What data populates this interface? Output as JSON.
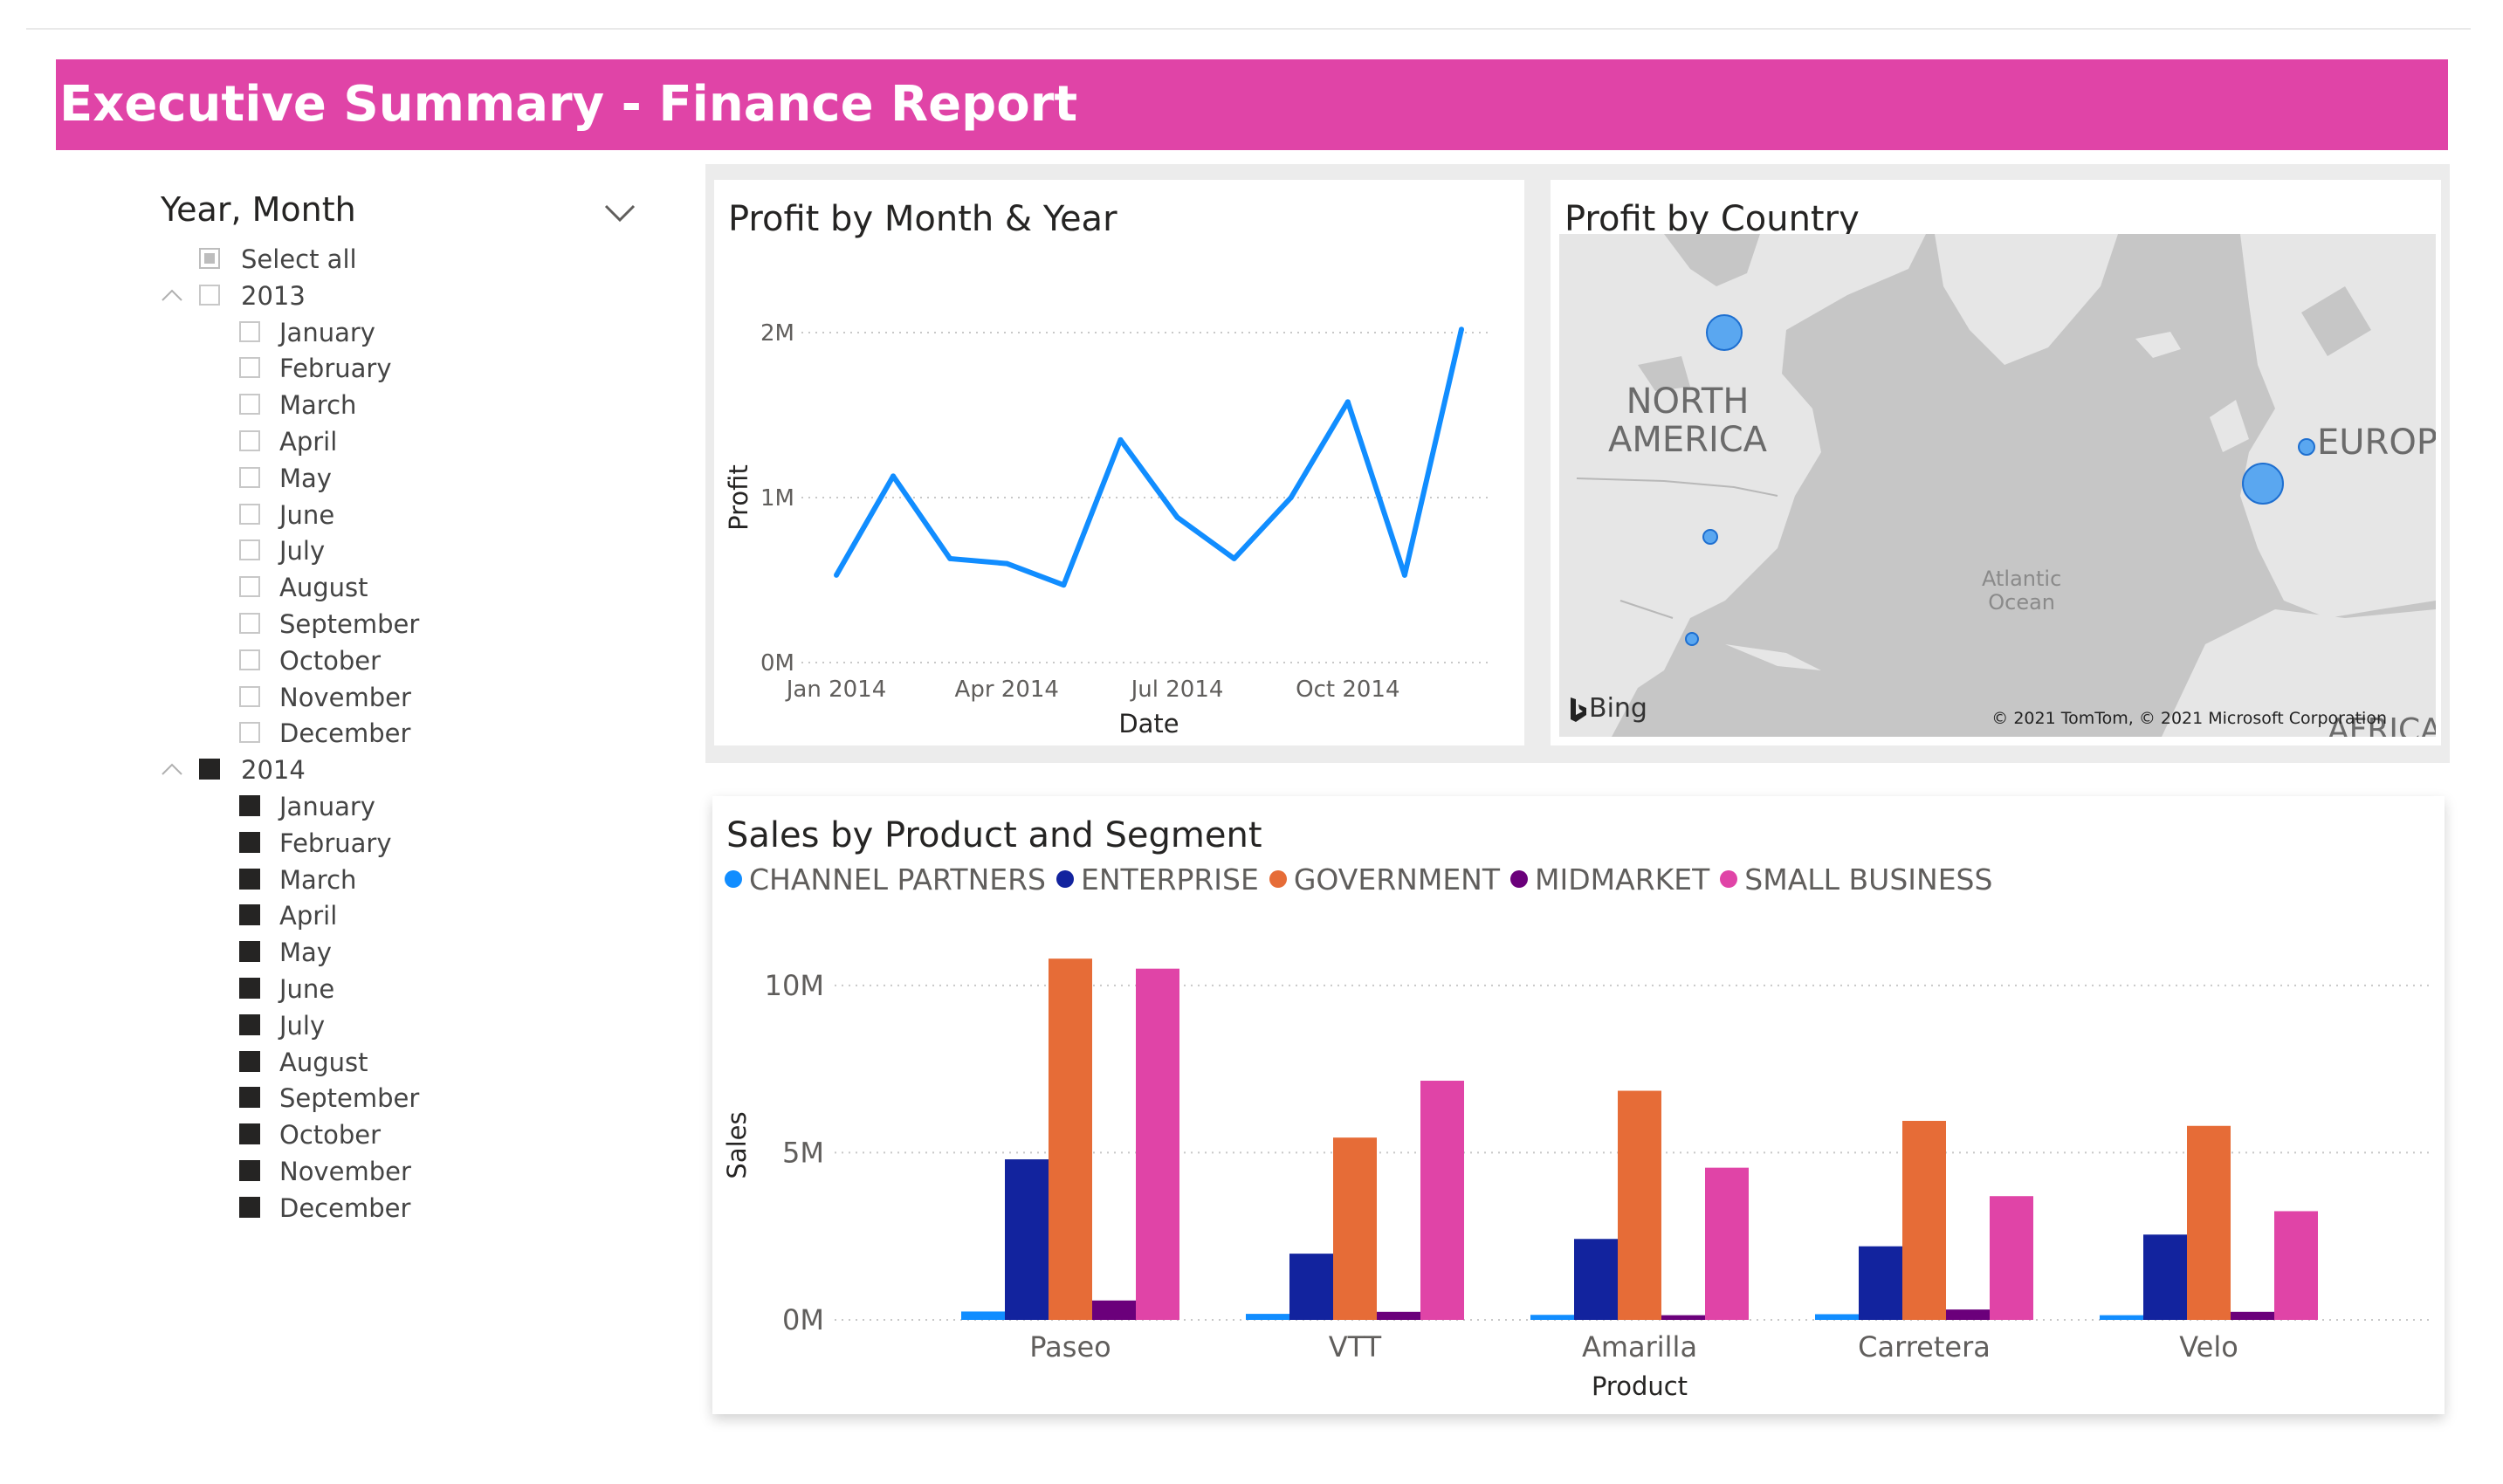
{
  "report": {
    "title": "Executive Summary - Finance Report"
  },
  "slicer": {
    "title": "Year, Month",
    "items": [
      {
        "label": "Select all",
        "level": 0,
        "state": "partial",
        "expander": false
      },
      {
        "label": "2013",
        "level": 0,
        "state": "unchecked",
        "expander": true
      },
      {
        "label": "January",
        "level": 1,
        "state": "unchecked"
      },
      {
        "label": "February",
        "level": 1,
        "state": "unchecked"
      },
      {
        "label": "March",
        "level": 1,
        "state": "unchecked"
      },
      {
        "label": "April",
        "level": 1,
        "state": "unchecked"
      },
      {
        "label": "May",
        "level": 1,
        "state": "unchecked"
      },
      {
        "label": "June",
        "level": 1,
        "state": "unchecked"
      },
      {
        "label": "July",
        "level": 1,
        "state": "unchecked"
      },
      {
        "label": "August",
        "level": 1,
        "state": "unchecked"
      },
      {
        "label": "September",
        "level": 1,
        "state": "unchecked"
      },
      {
        "label": "October",
        "level": 1,
        "state": "unchecked"
      },
      {
        "label": "November",
        "level": 1,
        "state": "unchecked"
      },
      {
        "label": "December",
        "level": 1,
        "state": "unchecked"
      },
      {
        "label": "2014",
        "level": 0,
        "state": "checked",
        "expander": true
      },
      {
        "label": "January",
        "level": 1,
        "state": "checked"
      },
      {
        "label": "February",
        "level": 1,
        "state": "checked"
      },
      {
        "label": "March",
        "level": 1,
        "state": "checked"
      },
      {
        "label": "April",
        "level": 1,
        "state": "checked"
      },
      {
        "label": "May",
        "level": 1,
        "state": "checked"
      },
      {
        "label": "June",
        "level": 1,
        "state": "checked"
      },
      {
        "label": "July",
        "level": 1,
        "state": "checked"
      },
      {
        "label": "August",
        "level": 1,
        "state": "checked"
      },
      {
        "label": "September",
        "level": 1,
        "state": "checked"
      },
      {
        "label": "October",
        "level": 1,
        "state": "checked"
      },
      {
        "label": "November",
        "level": 1,
        "state": "checked"
      },
      {
        "label": "December",
        "level": 1,
        "state": "checked"
      }
    ]
  },
  "map": {
    "title": "Profit by Country",
    "labels": {
      "north_america": [
        "NORTH",
        "AMERICA"
      ],
      "europe": "EUROPE",
      "ocean": [
        "Atlantic",
        "Ocean"
      ],
      "africa": "AFRICA"
    },
    "attribution": "© 2021 TomTom, © 2021 Microsoft Corporation",
    "bing": "Bing",
    "bubbles": [
      {
        "name": "Canada",
        "size": "large"
      },
      {
        "name": "United States of America",
        "size": "small"
      },
      {
        "name": "Mexico",
        "size": "small"
      },
      {
        "name": "Germany",
        "size": "small"
      },
      {
        "name": "France",
        "size": "large"
      }
    ]
  },
  "chart_data": [
    {
      "type": "line",
      "title": "Profit by Month & Year",
      "xlabel": "Date",
      "ylabel": "Profit",
      "x": [
        "2014-01",
        "2014-02",
        "2014-03",
        "2014-04",
        "2014-05",
        "2014-06",
        "2014-07",
        "2014-08",
        "2014-09",
        "2014-10",
        "2014-11",
        "2014-12"
      ],
      "x_ticks": [
        "Jan 2014",
        "Apr 2014",
        "Jul 2014",
        "Oct 2014"
      ],
      "y_ticks": [
        "0M",
        "1M",
        "2M"
      ],
      "values": [
        0.53,
        1.13,
        0.63,
        0.6,
        0.47,
        1.35,
        0.88,
        0.63,
        1.0,
        1.58,
        0.53,
        2.02
      ],
      "ylim": [
        0,
        2
      ],
      "color": "#118dff",
      "grid": true
    },
    {
      "type": "bar",
      "title": "Sales by Product and Segment",
      "xlabel": "Product",
      "ylabel": "Sales",
      "categories": [
        "Paseo",
        "VTT",
        "Amarilla",
        "Carretera",
        "Velo"
      ],
      "y_ticks": [
        "0M",
        "5M",
        "10M"
      ],
      "ylim": [
        0,
        10.7
      ],
      "series": [
        {
          "name": "CHANNEL PARTNERS",
          "color": "#118dff",
          "values": [
            0.25,
            0.18,
            0.15,
            0.17,
            0.14
          ]
        },
        {
          "name": "ENTERPRISE",
          "color": "#12239e",
          "values": [
            4.8,
            1.98,
            2.42,
            2.2,
            2.55
          ]
        },
        {
          "name": "GOVERNMENT",
          "color": "#e66c37",
          "values": [
            10.8,
            5.45,
            6.85,
            5.95,
            5.8
          ]
        },
        {
          "name": "MIDMARKET",
          "color": "#6b007b",
          "values": [
            0.58,
            0.24,
            0.14,
            0.31,
            0.24
          ]
        },
        {
          "name": "SMALL BUSINESS",
          "color": "#e044a7",
          "values": [
            10.5,
            7.15,
            4.55,
            3.7,
            3.25
          ]
        }
      ],
      "legend": "top-left",
      "grid": true
    }
  ]
}
